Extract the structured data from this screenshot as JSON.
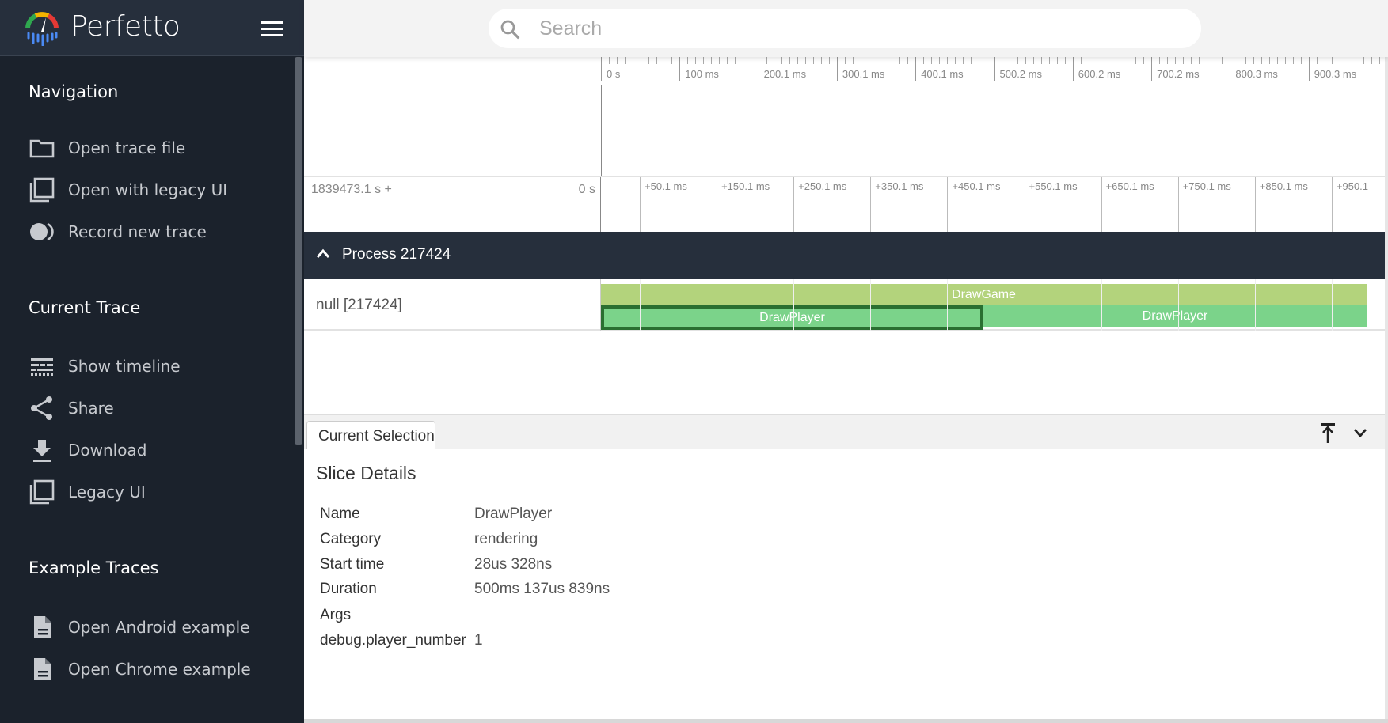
{
  "app": {
    "name": "Perfetto"
  },
  "search": {
    "placeholder": "Search"
  },
  "sidebar": {
    "sections": [
      {
        "title": "Navigation",
        "items": [
          {
            "label": "Open trace file",
            "icon": "folder-icon"
          },
          {
            "label": "Open with legacy UI",
            "icon": "filter-none-icon"
          },
          {
            "label": "Record new trace",
            "icon": "fiber-smart-record-icon"
          }
        ]
      },
      {
        "title": "Current Trace",
        "items": [
          {
            "label": "Show timeline",
            "icon": "timeline-icon"
          },
          {
            "label": "Share",
            "icon": "share-icon"
          },
          {
            "label": "Download",
            "icon": "download-icon"
          },
          {
            "label": "Legacy UI",
            "icon": "filter-none-icon"
          }
        ]
      },
      {
        "title": "Example Traces",
        "items": [
          {
            "label": "Open Android example",
            "icon": "description-icon"
          },
          {
            "label": "Open Chrome example",
            "icon": "description-icon"
          }
        ]
      }
    ]
  },
  "timeline": {
    "overview_ticks": [
      "0 s",
      "100 ms",
      "200.1 ms",
      "300.1 ms",
      "400.1 ms",
      "500.2 ms",
      "600.2 ms",
      "700.2 ms",
      "800.3 ms",
      "900.3 ms"
    ],
    "offset_label": "1839473.1 s +",
    "zero_label": "0 s",
    "ticks": [
      "+50.1 ms",
      "+150.1 ms",
      "+250.1 ms",
      "+350.1 ms",
      "+450.1 ms",
      "+550.1 ms",
      "+650.1 ms",
      "+750.1 ms",
      "+850.1 ms",
      "+950.1"
    ],
    "process": {
      "title": "Process 217424"
    },
    "track": {
      "label": "null [217424]",
      "slices": [
        {
          "name": "DrawGame",
          "depth": 0,
          "start_ms": 0,
          "end_ms": 1001,
          "color": "#b3d37c"
        },
        {
          "name": "DrawPlayer",
          "depth": 1,
          "start_ms": 0,
          "end_ms": 500,
          "color": "#7bd38a",
          "selected": true
        },
        {
          "name": "DrawPlayer",
          "depth": 1,
          "start_ms": 500,
          "end_ms": 1001,
          "color": "#7bd38a"
        }
      ]
    }
  },
  "details": {
    "tab": "Current Selection",
    "title": "Slice Details",
    "rows": [
      {
        "label": "Name",
        "value": "DrawPlayer"
      },
      {
        "label": "Category",
        "value": "rendering"
      },
      {
        "label": "Start time",
        "value": "28us 328ns"
      },
      {
        "label": "Duration",
        "value": "500ms 137us 839ns"
      },
      {
        "label": "Args",
        "value": ""
      },
      {
        "label": "debug.player_number",
        "value": "1"
      }
    ]
  },
  "colors": {
    "sidebar": "#1b222c",
    "header": "#262f3c",
    "selection_border": "#2a6f31"
  }
}
